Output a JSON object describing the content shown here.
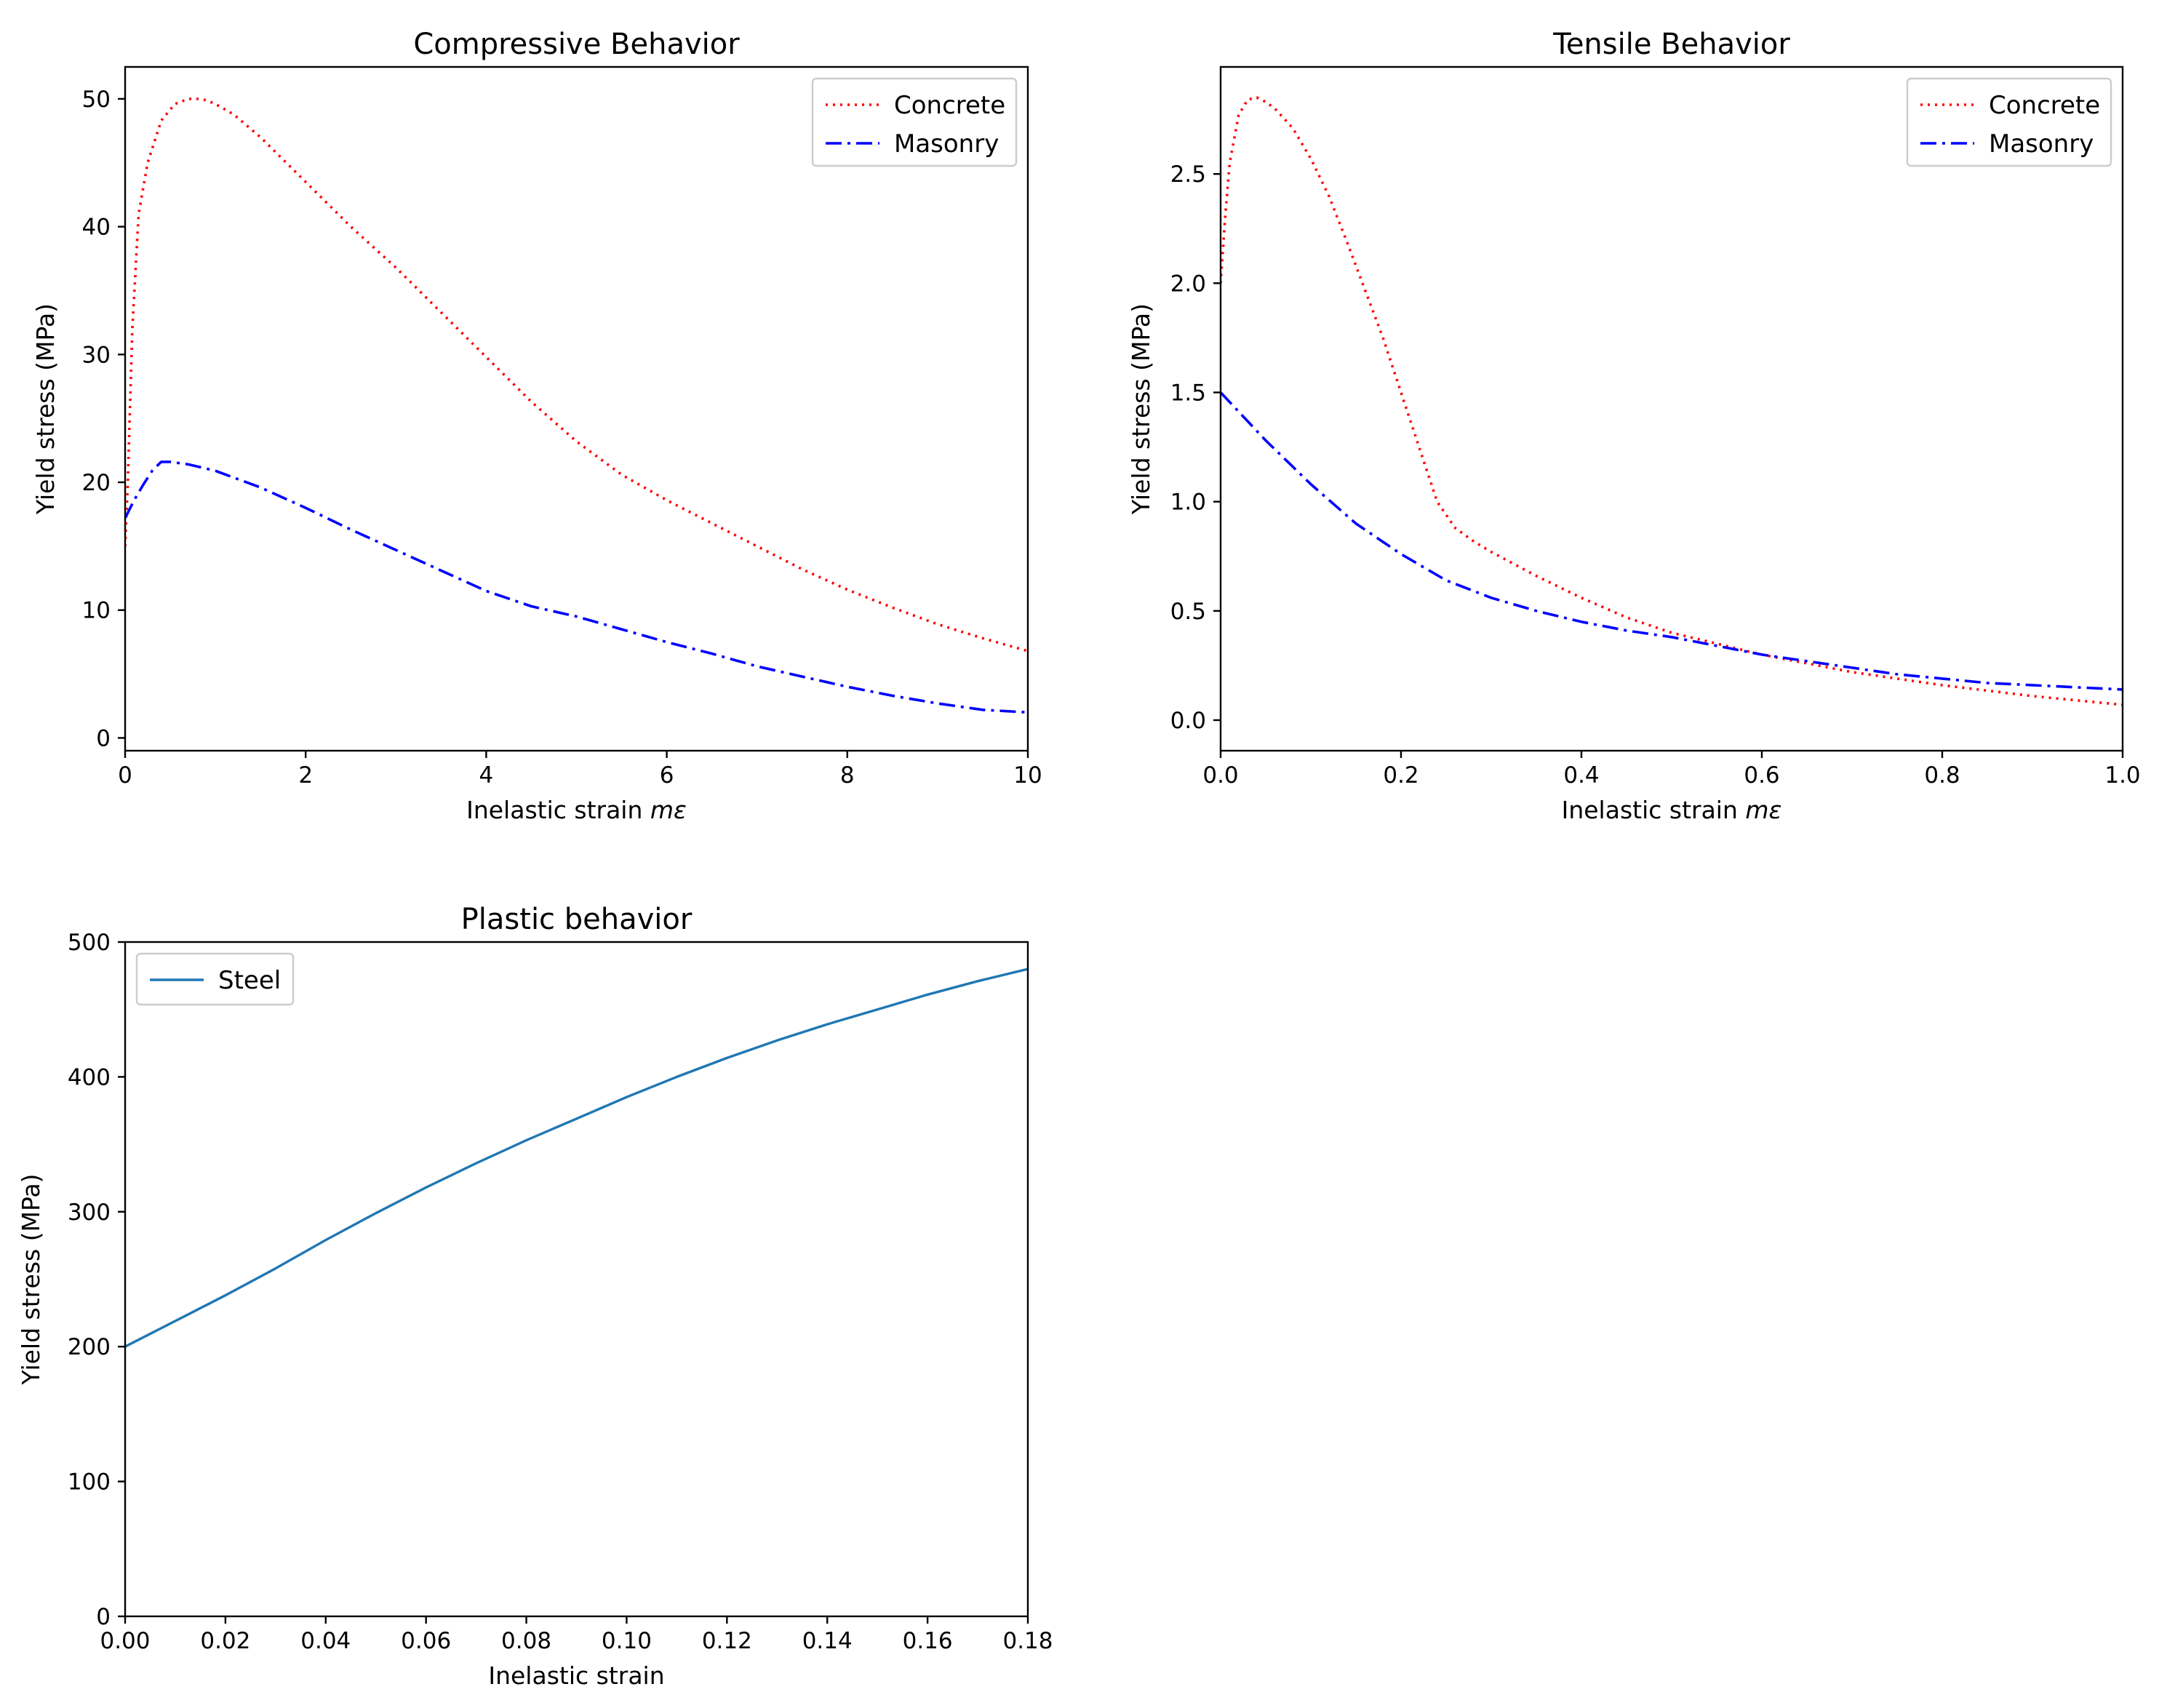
{
  "chart_data": [
    {
      "id": "compressive",
      "type": "line",
      "title": "Compressive Behavior",
      "xlabel": "Inelastic strain ",
      "xlabel_italic": "mε",
      "ylabel": "Yield stress (MPa)",
      "xlim": [
        0,
        10
      ],
      "ylim": [
        -1,
        52.5
      ],
      "xticks": [
        0,
        2,
        4,
        6,
        8,
        10
      ],
      "xtick_labels": [
        "0",
        "2",
        "4",
        "6",
        "8",
        "10"
      ],
      "yticks": [
        0,
        10,
        20,
        30,
        40,
        50
      ],
      "ytick_labels": [
        "0",
        "10",
        "20",
        "30",
        "40",
        "50"
      ],
      "legend_location": "upper right",
      "series": [
        {
          "name": "Concrete",
          "color": "#ff0000",
          "style": "dotted",
          "x": [
            0,
            0.03,
            0.08,
            0.15,
            0.25,
            0.4,
            0.55,
            0.7,
            0.8,
            0.9,
            1.0,
            1.2,
            1.5,
            2.0,
            2.5,
            3.0,
            3.5,
            4.0,
            4.5,
            5.0,
            5.5,
            6.0,
            6.5,
            7.0,
            7.5,
            8.0,
            8.5,
            9.0,
            9.5,
            10.0
          ],
          "y": [
            15,
            20,
            32,
            41,
            45,
            48.3,
            49.6,
            50.0,
            50.0,
            49.9,
            49.6,
            48.8,
            47.0,
            43.5,
            40,
            36.8,
            33.3,
            29.8,
            26.3,
            23.2,
            20.6,
            18.6,
            16.8,
            15.0,
            13.2,
            11.6,
            10.2,
            8.9,
            7.8,
            6.8
          ]
        },
        {
          "name": "Masonry",
          "color": "#0000ff",
          "style": "dashdot",
          "x": [
            0,
            0.1,
            0.2,
            0.3,
            0.4,
            0.5,
            0.7,
            1.0,
            1.5,
            2.0,
            2.5,
            3.0,
            3.5,
            4.0,
            4.5,
            5.0,
            5.5,
            6.0,
            6.5,
            7.0,
            7.5,
            8.0,
            8.5,
            9.0,
            9.5,
            10.0
          ],
          "y": [
            17.2,
            18.6,
            19.8,
            20.9,
            21.6,
            21.6,
            21.4,
            20.9,
            19.6,
            18.0,
            16.3,
            14.7,
            13.1,
            11.5,
            10.3,
            9.5,
            8.5,
            7.5,
            6.6,
            5.6,
            4.8,
            4.0,
            3.3,
            2.7,
            2.2,
            2.0
          ]
        }
      ]
    },
    {
      "id": "tensile",
      "type": "line",
      "title": "Tensile Behavior",
      "xlabel": "Inelastic strain ",
      "xlabel_italic": "mε",
      "ylabel": "Yield stress (MPa)",
      "xlim": [
        0,
        1.0
      ],
      "ylim": [
        -0.14,
        2.99
      ],
      "xticks": [
        0,
        0.2,
        0.4,
        0.6,
        0.8,
        1.0
      ],
      "xtick_labels": [
        "0.0",
        "0.2",
        "0.4",
        "0.6",
        "0.8",
        "1.0"
      ],
      "yticks": [
        0,
        0.5,
        1.0,
        1.5,
        2.0,
        2.5
      ],
      "ytick_labels": [
        "0.0",
        "0.5",
        "1.0",
        "1.5",
        "2.0",
        "2.5"
      ],
      "legend_location": "upper right",
      "series": [
        {
          "name": "Concrete",
          "color": "#ff0000",
          "style": "dotted",
          "x": [
            0,
            0.005,
            0.01,
            0.02,
            0.03,
            0.04,
            0.05,
            0.06,
            0.08,
            0.1,
            0.12,
            0.14,
            0.16,
            0.18,
            0.2,
            0.22,
            0.24,
            0.26,
            0.28,
            0.3,
            0.35,
            0.4,
            0.45,
            0.5,
            0.55,
            0.6,
            0.65,
            0.7,
            0.8,
            0.9,
            1.0
          ],
          "y": [
            2.0,
            2.3,
            2.55,
            2.77,
            2.84,
            2.85,
            2.83,
            2.8,
            2.71,
            2.57,
            2.4,
            2.19,
            1.97,
            1.75,
            1.5,
            1.25,
            1.0,
            0.88,
            0.82,
            0.77,
            0.66,
            0.56,
            0.47,
            0.4,
            0.35,
            0.3,
            0.26,
            0.22,
            0.16,
            0.11,
            0.07
          ]
        },
        {
          "name": "Masonry",
          "color": "#0000ff",
          "style": "dashdot",
          "x": [
            0,
            0.05,
            0.1,
            0.15,
            0.2,
            0.25,
            0.3,
            0.35,
            0.4,
            0.45,
            0.5,
            0.55,
            0.6,
            0.65,
            0.7,
            0.75,
            0.8,
            0.85,
            0.9,
            0.95,
            1.0
          ],
          "y": [
            1.5,
            1.28,
            1.08,
            0.9,
            0.76,
            0.64,
            0.56,
            0.5,
            0.45,
            0.41,
            0.38,
            0.34,
            0.3,
            0.27,
            0.24,
            0.21,
            0.19,
            0.17,
            0.16,
            0.15,
            0.14
          ]
        }
      ]
    },
    {
      "id": "plastic",
      "type": "line",
      "title": "Plastic behavior",
      "xlabel": "Inelastic strain",
      "xlabel_italic": "",
      "ylabel": "Yield stress (MPa)",
      "xlim": [
        0,
        0.18
      ],
      "ylim": [
        0,
        500
      ],
      "xticks": [
        0,
        0.02,
        0.04,
        0.06,
        0.08,
        0.1,
        0.12,
        0.14,
        0.16,
        0.18
      ],
      "xtick_labels": [
        "0.00",
        "0.02",
        "0.04",
        "0.06",
        "0.08",
        "0.10",
        "0.12",
        "0.14",
        "0.16",
        "0.18"
      ],
      "yticks": [
        0,
        100,
        200,
        300,
        400,
        500
      ],
      "ytick_labels": [
        "0",
        "100",
        "200",
        "300",
        "400",
        "500"
      ],
      "legend_location": "upper left",
      "series": [
        {
          "name": "Steel",
          "color": "#1f77b4",
          "style": "solid",
          "x": [
            0,
            0.01,
            0.02,
            0.03,
            0.04,
            0.05,
            0.06,
            0.07,
            0.08,
            0.09,
            0.1,
            0.11,
            0.12,
            0.13,
            0.14,
            0.15,
            0.16,
            0.17,
            0.18
          ],
          "y": [
            200,
            219,
            238,
            258,
            279,
            299,
            318,
            336,
            353,
            369,
            385,
            400,
            414,
            427,
            439,
            450,
            461,
            471,
            480
          ]
        }
      ]
    }
  ]
}
